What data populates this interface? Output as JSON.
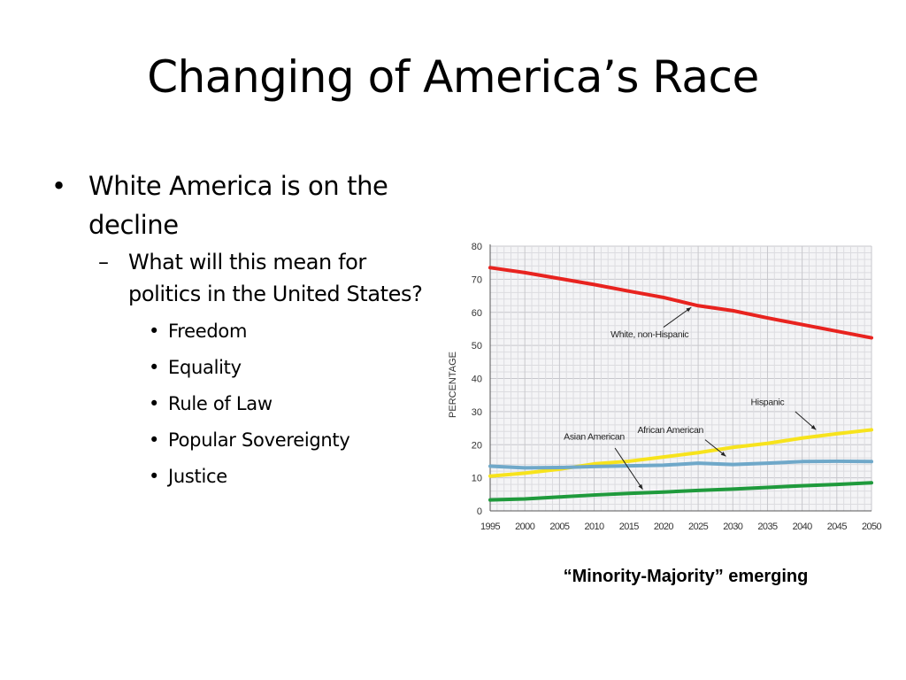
{
  "slide": {
    "title": "Changing of America’s Race",
    "bullet_marker": "•",
    "sub_marker": "–",
    "bullet1": "White America is on the decline",
    "sub1": "What will this mean for politics in the United States?",
    "items": [
      "Freedom",
      "Equality",
      "Rule of Law",
      "Popular Sovereignty",
      "Justice"
    ],
    "caption": "“Minority-Majority” emerging"
  },
  "chart_data": {
    "type": "line",
    "x": [
      1995,
      2000,
      2005,
      2010,
      2015,
      2020,
      2025,
      2030,
      2035,
      2040,
      2045,
      2050
    ],
    "ylabel": "PERCENTAGE",
    "xlabel": "",
    "ylim": [
      0,
      80
    ],
    "yticks": [
      0,
      10,
      20,
      30,
      40,
      50,
      60,
      70,
      80
    ],
    "grid": true,
    "series": [
      {
        "name": "White, non-Hispanic",
        "color": "#e8231f",
        "values": [
          73.5,
          72,
          70.2,
          68.4,
          66.4,
          64.5,
          62,
          60.5,
          58.3,
          56.3,
          54.3,
          52.3
        ]
      },
      {
        "name": "Hispanic",
        "color": "#f7e31c",
        "values": [
          10.5,
          11.4,
          12.6,
          14.2,
          15,
          16.3,
          17.6,
          19.2,
          20.4,
          22,
          23.3,
          24.5
        ]
      },
      {
        "name": "African American",
        "color": "#6fa8c9",
        "values": [
          13.5,
          13,
          13.1,
          13.4,
          13.6,
          13.8,
          14.4,
          14,
          14.4,
          14.9,
          15,
          14.9
        ]
      },
      {
        "name": "Asian American",
        "color": "#1f9a3c",
        "values": [
          3.3,
          3.6,
          4.2,
          4.8,
          5.3,
          5.7,
          6.2,
          6.6,
          7.1,
          7.6,
          8,
          8.5
        ]
      }
    ]
  }
}
